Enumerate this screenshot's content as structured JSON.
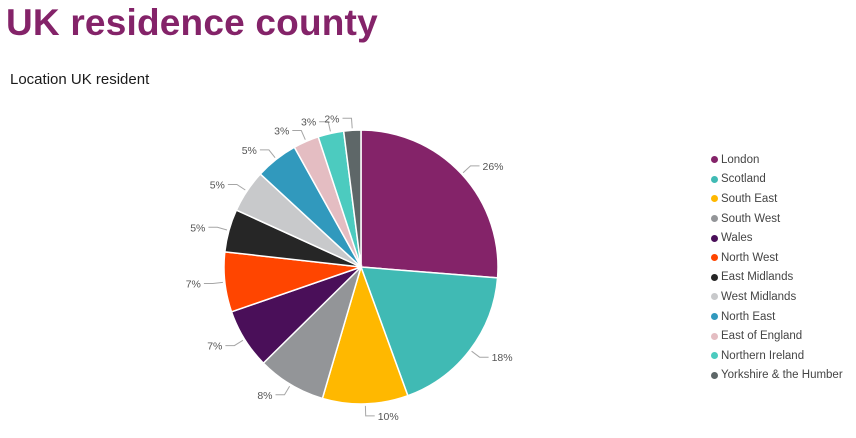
{
  "header": {
    "title": "UK residence county",
    "subtitle": "Location UK resident"
  },
  "chart_data": {
    "type": "pie",
    "title": "Location UK resident",
    "legend_position": "right",
    "slices": [
      {
        "name": "London",
        "value": 26,
        "label": "26%",
        "color": "#842369"
      },
      {
        "name": "Scotland",
        "value": 18,
        "label": "18%",
        "color": "#40BAB4"
      },
      {
        "name": "South East",
        "value": 10,
        "label": "10%",
        "color": "#FFB800"
      },
      {
        "name": "South West",
        "value": 8,
        "label": "8%",
        "color": "#939598"
      },
      {
        "name": "Wales",
        "value": 7,
        "label": "7%",
        "color": "#4A0F59"
      },
      {
        "name": "North West",
        "value": 7,
        "label": "7%",
        "color": "#FF4500"
      },
      {
        "name": "East Midlands",
        "value": 5,
        "label": "5%",
        "color": "#262626"
      },
      {
        "name": "West Midlands",
        "value": 5,
        "label": "5%",
        "color": "#C8C9CB"
      },
      {
        "name": "North East",
        "value": 5,
        "label": "5%",
        "color": "#3199BD"
      },
      {
        "name": "East of England",
        "value": 3,
        "label": "3%",
        "color": "#E4BDC2"
      },
      {
        "name": "Northern Ireland",
        "value": 3,
        "label": "3%",
        "color": "#4CCBBF"
      },
      {
        "name": "Yorkshire & the Humber",
        "value": 2,
        "label": "2%",
        "color": "#5E6768"
      }
    ]
  }
}
